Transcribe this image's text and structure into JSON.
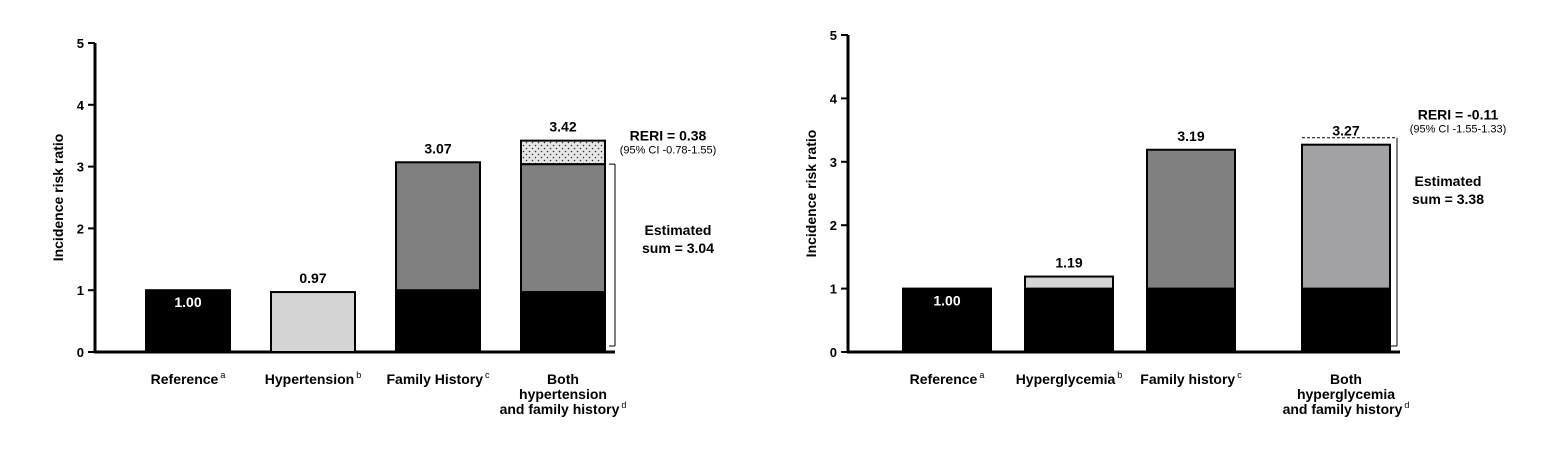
{
  "chart_data": [
    {
      "type": "bar",
      "stacked": true,
      "ylabel": "Incidence risk ratio",
      "ylim": [
        0,
        5
      ],
      "yticks": [
        "0",
        "1",
        "2",
        "3",
        "4",
        "5"
      ],
      "categories": [
        {
          "lines": [
            "Reference"
          ],
          "sup": "a"
        },
        {
          "lines": [
            "Hypertension"
          ],
          "sup": "b"
        },
        {
          "lines": [
            "Family History"
          ],
          "sup": "c"
        },
        {
          "lines": [
            "Both",
            "hypertension",
            "and family history"
          ],
          "sup": "d"
        }
      ],
      "bars": [
        {
          "total": 1.0,
          "label": "1.00",
          "label_inside": true,
          "segments": [
            {
              "value": 1.0,
              "fill": "#000000"
            }
          ]
        },
        {
          "total": 0.97,
          "label": "0.97",
          "label_inside": false,
          "segments": [
            {
              "value": 0.97,
              "fill": "#d4d4d4"
            }
          ]
        },
        {
          "total": 3.07,
          "label": "3.07",
          "label_inside": false,
          "segments": [
            {
              "value": 1.0,
              "fill": "#000000"
            },
            {
              "value": 2.07,
              "fill": "#808080"
            }
          ]
        },
        {
          "total": 3.42,
          "label": "3.42",
          "label_inside": false,
          "segments": [
            {
              "value": 0.97,
              "fill": "#000000"
            },
            {
              "value": 2.07,
              "fill": "#808080"
            },
            {
              "value": 0.38,
              "fill": "dots"
            }
          ]
        }
      ],
      "interaction": {
        "rer_text": "RERI = 0.38",
        "ci_text": "(95% CI -0.78-1.55)",
        "estimated_lines": [
          "Estimated",
          "sum = 3.04"
        ],
        "estimated_sum": 3.04,
        "dashed_reference": false
      }
    },
    {
      "type": "bar",
      "stacked": true,
      "ylabel": "Incidence risk ratio",
      "ylim": [
        0,
        5
      ],
      "yticks": [
        "0",
        "1",
        "2",
        "3",
        "4",
        "5"
      ],
      "categories": [
        {
          "lines": [
            "Reference"
          ],
          "sup": "a"
        },
        {
          "lines": [
            "Hyperglycemia"
          ],
          "sup": "b"
        },
        {
          "lines": [
            "Family history"
          ],
          "sup": "c"
        },
        {
          "lines": [
            "Both",
            "hyperglycemia",
            "and family history"
          ],
          "sup": "d"
        }
      ],
      "bars": [
        {
          "total": 1.0,
          "label": "1.00",
          "label_inside": true,
          "segments": [
            {
              "value": 1.0,
              "fill": "#000000"
            }
          ]
        },
        {
          "total": 1.19,
          "label": "1.19",
          "label_inside": false,
          "segments": [
            {
              "value": 1.0,
              "fill": "#000000"
            },
            {
              "value": 0.19,
              "fill": "#d4d4d4"
            }
          ]
        },
        {
          "total": 3.19,
          "label": "3.19",
          "label_inside": false,
          "segments": [
            {
              "value": 1.0,
              "fill": "#000000"
            },
            {
              "value": 2.19,
              "fill": "#808080"
            }
          ]
        },
        {
          "total": 3.27,
          "label": "3.27",
          "label_inside": false,
          "segments": [
            {
              "value": 1.0,
              "fill": "#000000"
            },
            {
              "value": 2.27,
              "fill": "#a2a2a6"
            }
          ]
        }
      ],
      "interaction": {
        "rer_text": "RERI = -0.11",
        "ci_text": "(95% CI -1.55-1.33)",
        "estimated_lines": [
          "Estimated",
          "sum = 3.38"
        ],
        "estimated_sum": 3.38,
        "dashed_reference": true
      }
    }
  ]
}
